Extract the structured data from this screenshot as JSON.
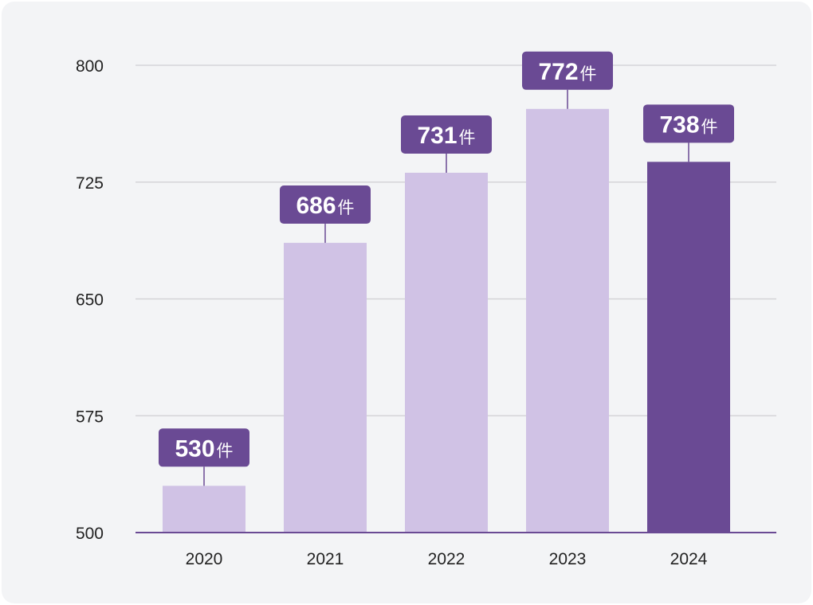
{
  "chart_data": {
    "type": "bar",
    "categories": [
      "2020",
      "2021",
      "2022",
      "2023",
      "2024"
    ],
    "values": [
      530,
      686,
      731,
      772,
      738
    ],
    "value_suffix": "件",
    "ylim": [
      500,
      800
    ],
    "yticks": [
      500,
      575,
      650,
      725,
      800
    ],
    "grid": true,
    "highlight_index": 4,
    "colors": {
      "bar": "#d0c2e5",
      "bar_highlight": "#6a4a94",
      "label_bg": "#6a4a94",
      "grid": "#d4d4d8",
      "baseline": "#6a4a94"
    }
  }
}
